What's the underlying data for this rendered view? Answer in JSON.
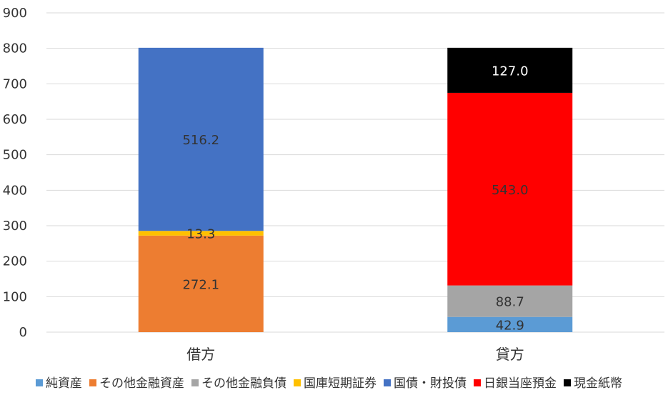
{
  "chart_data": {
    "type": "bar",
    "stacked": true,
    "categories": [
      "借方",
      "貸方"
    ],
    "ylim": [
      0,
      900
    ],
    "yticks": [
      0,
      100,
      200,
      300,
      400,
      500,
      600,
      700,
      800,
      900
    ],
    "grid": true,
    "legend_position": "bottom",
    "series": [
      {
        "name": "純資産",
        "color": "#5B9BD5",
        "values": [
          0,
          42.9
        ],
        "labels": [
          "",
          "42.9"
        ],
        "label_color": "#333333"
      },
      {
        "name": "その他金融資産",
        "color": "#ED7D31",
        "values": [
          272.1,
          0
        ],
        "labels": [
          "272.1",
          ""
        ],
        "label_color": "#333333"
      },
      {
        "name": "その他金融負債",
        "color": "#A5A5A5",
        "values": [
          0,
          88.7
        ],
        "labels": [
          "",
          "88.7"
        ],
        "label_color": "#333333"
      },
      {
        "name": "国庫短期証券",
        "color": "#FFC000",
        "values": [
          13.3,
          0
        ],
        "labels": [
          "13.3",
          ""
        ],
        "label_color": "#333333"
      },
      {
        "name": "国債・財投債",
        "color": "#4472C4",
        "values": [
          516.2,
          0
        ],
        "labels": [
          "516.2",
          ""
        ],
        "label_color": "#333333"
      },
      {
        "name": "日銀当座預金",
        "color": "#FF0000",
        "values": [
          0,
          543.0
        ],
        "labels": [
          "",
          "543.0"
        ],
        "label_color": "#333333"
      },
      {
        "name": "現金紙幣",
        "color": "#000000",
        "values": [
          0,
          127.0
        ],
        "labels": [
          "",
          "127.0"
        ],
        "label_color": "#FFFFFF"
      }
    ]
  }
}
